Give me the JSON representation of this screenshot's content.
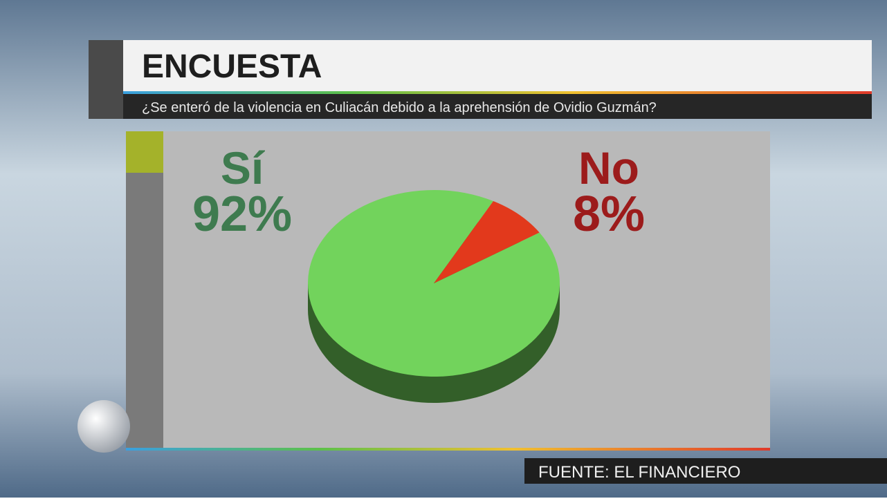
{
  "chart_data": {
    "type": "pie",
    "title": "ENCUESTA",
    "subtitle": "¿Se enteró de la violencia en Culiacán debido a la aprehensión de Ovidio Guzmán?",
    "categories": [
      "Sí",
      "No"
    ],
    "values": [
      92,
      8
    ],
    "value_labels": [
      "92%",
      "8%"
    ],
    "colors": [
      "#72d35c",
      "#e2391c"
    ],
    "label_colors": [
      "#3e7b4f",
      "#9c1b1b"
    ],
    "source": "FUENTE: EL FINANCIERO"
  }
}
